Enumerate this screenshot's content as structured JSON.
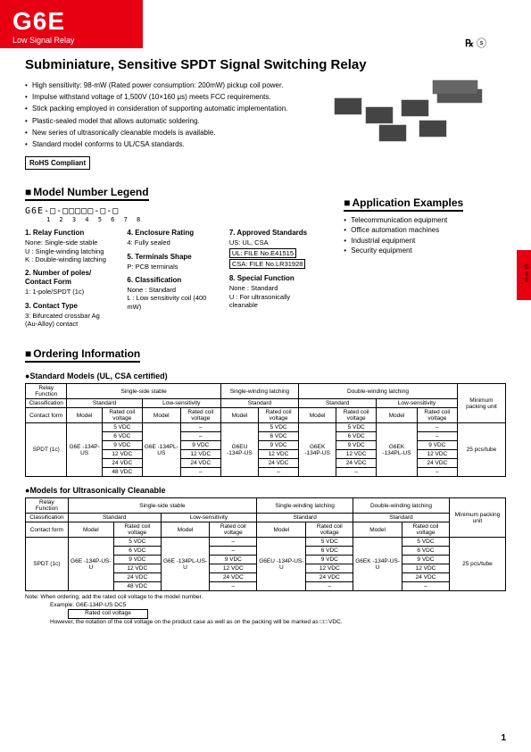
{
  "header": {
    "code": "G6E",
    "sub": "Low Signal Relay"
  },
  "title": "Subminiature, Sensitive SPDT Signal Switching Relay",
  "bullets": [
    "High sensitivity: 98-mW (Rated power consumption: 200mW) pickup coil power.",
    "Impulse withstand voltage of 1,500V (10×160 μs) meets FCC requirements.",
    "Stick packing employed in consideration of supporting automatic implementation.",
    "Plastic-sealed model that allows automatic soldering.",
    "New series of ultrasonically cleanable models is available.",
    "Standard model conforms to UL/CSA standards."
  ],
  "rohs": "RoHS Compliant",
  "sec_legend": "Model Number Legend",
  "legend_prefix": "G6E-□-□□□□□-□-□",
  "legend_nums": "1    2 3 4 5 6   7   8",
  "legend": {
    "c1": [
      {
        "t": "1. Relay Function",
        "lines": [
          "None: Single-side stable",
          "U  : Single-winding latching",
          "K  : Double-winding latching"
        ]
      },
      {
        "t": "2. Number of poles/ Contact Form",
        "lines": [
          "1: 1-pole/SPDT (1c)"
        ]
      },
      {
        "t": "3. Contact Type",
        "lines": [
          "3: Bifurcated crossbar Ag (Au-Alloy) contact"
        ]
      }
    ],
    "c2": [
      {
        "t": "4. Enclosure Rating",
        "lines": [
          "4: Fully sealed"
        ]
      },
      {
        "t": "5. Terminals Shape",
        "lines": [
          "P: PCB terminals"
        ]
      },
      {
        "t": "6. Classification",
        "lines": [
          "None : Standard",
          "L  : Low sensitivity coil (400 mW)"
        ]
      }
    ],
    "c3": [
      {
        "t": "7. Approved Standards",
        "lines": [
          "US: UL, CSA",
          "UL: FILE No.E41515",
          "CSA: FILE No.LR31928"
        ]
      },
      {
        "t": "8. Special Function",
        "lines": [
          "None : Standard",
          "U  : For ultrasonically cleanable"
        ]
      }
    ]
  },
  "sec_app": "Application Examples",
  "apps": [
    "Telecommunication equipment",
    "Office automation machines",
    "Industrial equipment",
    "Security equipment"
  ],
  "side_label": "G 6 E",
  "sec_order": "Ordering Information",
  "sub_std": "Standard Models (UL, CSA certified)",
  "sub_uc": "Models for Ultrasonically Cleanable",
  "t1": {
    "h1": [
      "Relay Function",
      "Single-side stable",
      "Single-winding latching",
      "Double-winding latching",
      "Minimum packing unit"
    ],
    "h2": [
      "Classification",
      "Standard",
      "Low-sensitivity",
      "Standard",
      "Standard",
      "Low-sensitivity"
    ],
    "h3": [
      "Contact form",
      "Model",
      "Rated coil voltage",
      "Model",
      "Rated coil voltage",
      "Model",
      "Rated coil voltage",
      "Model",
      "Rated coil voltage",
      "Model",
      "Rated coil voltage"
    ],
    "cf": "SPDT (1c)",
    "models": [
      "G6E -134P-US",
      "G6E -134PL-US",
      "G6EU -134P-US",
      "G6EK -134P-US",
      "G6EK -134PL-US"
    ],
    "voltages": [
      "5 VDC",
      "6 VDC",
      "9 VDC",
      "12 VDC",
      "24 VDC",
      "48 VDC"
    ],
    "pack": "25 pcs/tube"
  },
  "t2": {
    "h1": [
      "Relay Function",
      "Single-side stable",
      "Single-winding latching",
      "Double-winding latching",
      "Minimum packing unit"
    ],
    "h2": [
      "Classification",
      "Standard",
      "Low-sensitivity",
      "Standard",
      "Standard"
    ],
    "h3": [
      "Contact form",
      "Model",
      "Rated coil voltage",
      "Model",
      "Rated coil voltage",
      "Model",
      "Rated coil voltage",
      "Model",
      "Rated coil voltage"
    ],
    "cf": "SPDT (1c)",
    "models": [
      "G6E -134P-US-U",
      "G6E -134PL-US-U",
      "G6EU -134P-US-U",
      "G6EK -134P-US-U"
    ],
    "voltages": [
      "5 VDC",
      "6 VDC",
      "9 VDC",
      "12 VDC",
      "24 VDC",
      "48 VDC"
    ],
    "pack": "25 pcs/tube"
  },
  "note1": "Note: When ordering, add the rated coil voltage to the model number.",
  "note2": "Example: G6E-134P-US DC5",
  "note3": "Rated coil voltage",
  "note4": "However, the notation of the coil voltage on the product case as well as on the packing will be marked as □□ VDC.",
  "page": "1"
}
